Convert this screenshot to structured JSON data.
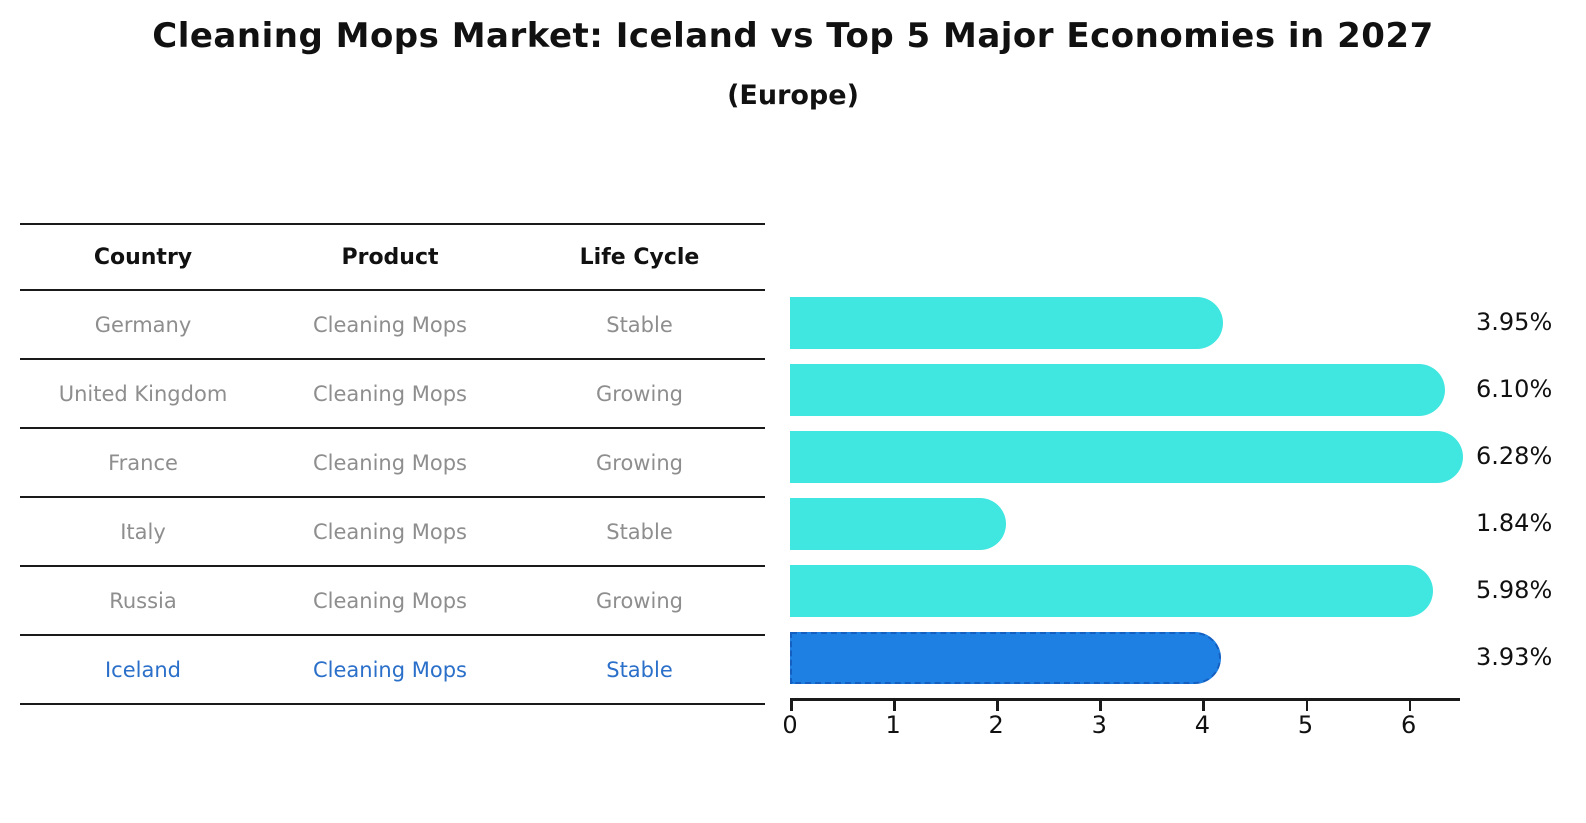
{
  "title": "Cleaning Mops Market: Iceland vs Top 5 Major Economies in 2027",
  "subtitle": "(Europe)",
  "table": {
    "columns": [
      "Country",
      "Product",
      "Life Cycle"
    ]
  },
  "rows": [
    {
      "country": "Germany",
      "product": "Cleaning Mops",
      "life_cycle": "Stable",
      "value": 3.95,
      "label": "3.95%",
      "highlight": false
    },
    {
      "country": "United Kingdom",
      "product": "Cleaning Mops",
      "life_cycle": "Growing",
      "value": 6.1,
      "label": "6.10%",
      "highlight": false
    },
    {
      "country": "France",
      "product": "Cleaning Mops",
      "life_cycle": "Growing",
      "value": 6.28,
      "label": "6.28%",
      "highlight": false
    },
    {
      "country": "Italy",
      "product": "Cleaning Mops",
      "life_cycle": "Stable",
      "value": 1.84,
      "label": "1.84%",
      "highlight": false
    },
    {
      "country": "Russia",
      "product": "Cleaning Mops",
      "life_cycle": "Growing",
      "value": 5.98,
      "label": "5.98%",
      "highlight": false
    },
    {
      "country": "Iceland",
      "product": "Cleaning Mops",
      "life_cycle": "Stable",
      "value": 3.93,
      "label": "3.93%",
      "highlight": true
    }
  ],
  "chart_data": {
    "type": "bar",
    "orientation": "horizontal",
    "title": "Cleaning Mops Market: Iceland vs Top 5 Major Economies in 2027",
    "subtitle": "(Europe)",
    "categories": [
      "Germany",
      "United Kingdom",
      "France",
      "Italy",
      "Russia",
      "Iceland"
    ],
    "values": [
      3.95,
      6.1,
      6.28,
      1.84,
      5.98,
      3.93
    ],
    "value_labels": [
      "3.95%",
      "6.10%",
      "6.28%",
      "1.84%",
      "5.98%",
      "3.93%"
    ],
    "xlabel": "",
    "ylabel": "",
    "xlim": [
      0,
      6.5
    ],
    "xticks": [
      0,
      1,
      2,
      3,
      4,
      5,
      6
    ],
    "grid": false,
    "legend": false,
    "bar_color": "#40E6E0",
    "highlight_color": "#1F80E4",
    "highlight_border_color": "#145fc0",
    "highlight_index": 5,
    "highlight_text_color": "#2a6fc9",
    "table_text_color": "#8e8e8e"
  }
}
